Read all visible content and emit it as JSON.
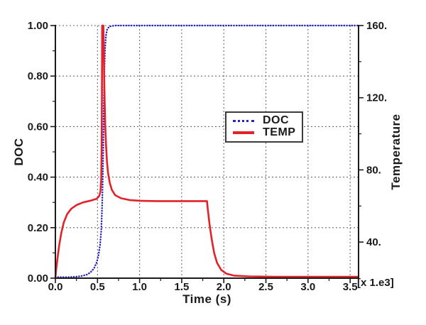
{
  "figure": {
    "background": "#ffffff",
    "text_color": "#1a1a1a",
    "spine_color": "#1a1a1a"
  },
  "chart_data": {
    "type": "line",
    "title": "",
    "xlabel": "Time (s)",
    "x_unit_multiplier": "[x 1.e3]",
    "grid": {
      "show": true,
      "color": "#6e6e6e",
      "style": "dashed"
    },
    "x_axis": {
      "lim": [
        0,
        3.6
      ],
      "ticks": [
        0,
        0.5,
        1.0,
        1.5,
        2.0,
        2.5,
        3.0,
        3.5
      ],
      "tick_labels": [
        "0.0",
        "0.5",
        "1.0",
        "1.5",
        "2.0",
        "2.5",
        "3.0",
        "3.5"
      ],
      "minor_ticks": [
        0.25,
        0.75,
        1.25,
        1.75,
        2.25,
        2.75,
        3.25
      ]
    },
    "left_axis": {
      "label": "DOC",
      "lim": [
        0,
        1
      ],
      "ticks": [
        0,
        0.2,
        0.4,
        0.6,
        0.8,
        1.0
      ],
      "tick_labels": [
        "0.00",
        "0.20",
        "0.40",
        "0.60",
        "0.80",
        "1.00"
      ],
      "minor_ticks": [
        0.1,
        0.3,
        0.5,
        0.7,
        0.9
      ]
    },
    "right_axis": {
      "label": "Temperature",
      "lim": [
        20,
        160
      ],
      "ticks": [
        40,
        80,
        120,
        160
      ],
      "tick_labels": [
        "40.",
        "80.",
        "120.",
        "160."
      ],
      "minor_ticks": [
        60,
        100,
        140
      ]
    },
    "legend": {
      "position": "center-left",
      "entries": [
        {
          "label": "DOC",
          "color": "#2626bd",
          "line_style": "dotted"
        },
        {
          "label": "TEMP",
          "color": "#e32128",
          "line_style": "solid"
        }
      ]
    },
    "series": [
      {
        "name": "DOC",
        "axis": "left",
        "color": "#2626bd",
        "line_style": "dotted",
        "points": [
          [
            0,
            0.004
          ],
          [
            0.15,
            0.004
          ],
          [
            0.25,
            0.006
          ],
          [
            0.32,
            0.009
          ],
          [
            0.38,
            0.015
          ],
          [
            0.42,
            0.024
          ],
          [
            0.46,
            0.04
          ],
          [
            0.49,
            0.062
          ],
          [
            0.51,
            0.088
          ],
          [
            0.53,
            0.13
          ],
          [
            0.545,
            0.19
          ],
          [
            0.555,
            0.28
          ],
          [
            0.563,
            0.4
          ],
          [
            0.57,
            0.55
          ],
          [
            0.576,
            0.7
          ],
          [
            0.582,
            0.82
          ],
          [
            0.59,
            0.91
          ],
          [
            0.6,
            0.96
          ],
          [
            0.615,
            0.985
          ],
          [
            0.64,
            0.996
          ],
          [
            0.7,
            1.0
          ],
          [
            3.6,
            1.0
          ]
        ]
      },
      {
        "name": "TEMP",
        "axis": "right",
        "color": "#e32128",
        "line_style": "solid",
        "points": [
          [
            0,
            20
          ],
          [
            0.01,
            25
          ],
          [
            0.025,
            31
          ],
          [
            0.045,
            38
          ],
          [
            0.07,
            45
          ],
          [
            0.1,
            51
          ],
          [
            0.14,
            55.5
          ],
          [
            0.19,
            58.5
          ],
          [
            0.25,
            60.5
          ],
          [
            0.33,
            62
          ],
          [
            0.42,
            63
          ],
          [
            0.49,
            64
          ],
          [
            0.52,
            65.5
          ],
          [
            0.535,
            68
          ],
          [
            0.545,
            75
          ],
          [
            0.55,
            95
          ],
          [
            0.553,
            125
          ],
          [
            0.556,
            160
          ],
          [
            0.57,
            160
          ],
          [
            0.574,
            148
          ],
          [
            0.579,
            132
          ],
          [
            0.585,
            118
          ],
          [
            0.592,
            105
          ],
          [
            0.601,
            94
          ],
          [
            0.612,
            85
          ],
          [
            0.625,
            78.5
          ],
          [
            0.645,
            73
          ],
          [
            0.67,
            69
          ],
          [
            0.71,
            66
          ],
          [
            0.78,
            64.3
          ],
          [
            0.88,
            63.3
          ],
          [
            1.0,
            62.9
          ],
          [
            1.2,
            62.7
          ],
          [
            1.5,
            62.7
          ],
          [
            1.8,
            62.7
          ],
          [
            1.81,
            58
          ],
          [
            1.83,
            50
          ],
          [
            1.855,
            42
          ],
          [
            1.885,
            34
          ],
          [
            1.92,
            28.5
          ],
          [
            1.97,
            24.5
          ],
          [
            2.03,
            22.5
          ],
          [
            2.12,
            21.4
          ],
          [
            2.3,
            21
          ],
          [
            2.6,
            20.8
          ],
          [
            3.6,
            20.8
          ]
        ]
      }
    ]
  }
}
